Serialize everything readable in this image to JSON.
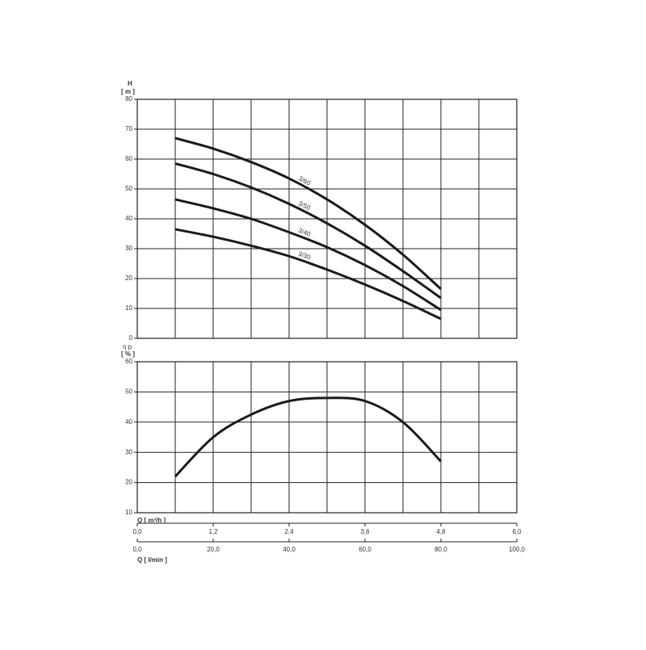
{
  "chart_data": [
    {
      "type": "line",
      "y_label": "H",
      "y_unit": "[ m ]",
      "x": [
        0.6,
        1.2,
        1.8,
        2.4,
        3.0,
        3.6,
        4.2,
        4.8
      ],
      "xlim": [
        0,
        6
      ],
      "ylim": [
        0,
        80
      ],
      "yticks": [
        0,
        10,
        20,
        30,
        40,
        50,
        60,
        70,
        80
      ],
      "series": [
        {
          "name": "3/60",
          "color": "#1a1a1a",
          "values": [
            67,
            63.5,
            59,
            53.5,
            46.5,
            38,
            28,
            16.5
          ]
        },
        {
          "name": "3/50",
          "color": "#1a1a1a",
          "values": [
            58.5,
            55,
            50.5,
            45,
            38.5,
            31,
            22.5,
            13.5
          ]
        },
        {
          "name": "3/40",
          "color": "#1a1a1a",
          "values": [
            46.5,
            43.5,
            40,
            35.5,
            30.5,
            24.5,
            17.5,
            9.5
          ]
        },
        {
          "name": "3/30",
          "color": "#1a1a1a",
          "values": [
            36.5,
            34,
            31,
            27.5,
            23,
            18,
            12.5,
            6.5
          ]
        }
      ]
    },
    {
      "type": "line",
      "y_label": "η p",
      "y_unit": "[ % ]",
      "x": [
        0.6,
        1.2,
        1.8,
        2.4,
        3.0,
        3.6,
        4.2,
        4.8
      ],
      "xlim": [
        0,
        6
      ],
      "ylim": [
        10,
        60
      ],
      "yticks": [
        10,
        20,
        30,
        40,
        50,
        60
      ],
      "series": [
        {
          "color": "#1a1a1a",
          "values": [
            22,
            35,
            42.5,
            47,
            48,
            47,
            40,
            27
          ]
        }
      ],
      "x_label": "Q [ m³/h ]",
      "xticks": [
        {
          "value": 0,
          "label": "0,0"
        },
        {
          "value": 1.2,
          "label": "1,2"
        },
        {
          "value": 2.4,
          "label": "2,4"
        },
        {
          "value": 3.6,
          "label": "3,6"
        },
        {
          "value": 4.8,
          "label": "4,8"
        },
        {
          "value": 6,
          "label": "6,0"
        }
      ],
      "x2_label": "Q [ l/min ]",
      "x2lim": [
        0,
        100
      ],
      "x2ticks": [
        {
          "value": 0,
          "label": "0,0"
        },
        {
          "value": 20,
          "label": "20,0"
        },
        {
          "value": 40,
          "label": "40,0"
        },
        {
          "value": 60,
          "label": "60,0"
        },
        {
          "value": 80,
          "label": "80,0"
        },
        {
          "value": 100,
          "label": "100,0"
        }
      ]
    }
  ]
}
